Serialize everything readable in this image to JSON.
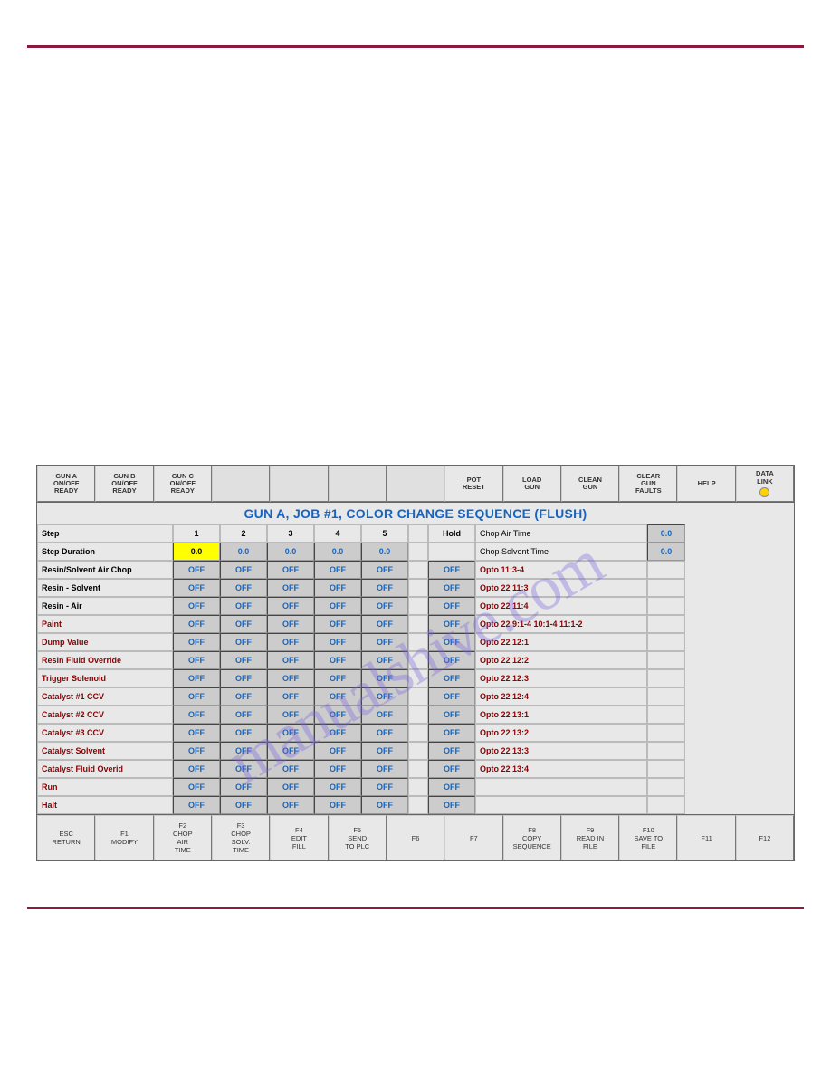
{
  "watermark": "manualshive.com",
  "title": "GUN A, JOB #1, COLOR CHANGE SEQUENCE (FLUSH)",
  "top": [
    {
      "t": "GUN A\nON/OFF\nREADY",
      "i": true
    },
    {
      "t": "GUN B\nON/OFF\nREADY",
      "i": true
    },
    {
      "t": "GUN C\nON/OFF\nREADY",
      "i": true
    },
    {
      "t": "",
      "i": false
    },
    {
      "t": "",
      "i": false
    },
    {
      "t": "",
      "i": false
    },
    {
      "t": "",
      "i": false
    },
    {
      "t": "POT\nRESET",
      "i": true
    },
    {
      "t": "LOAD\nGUN",
      "i": true
    },
    {
      "t": "CLEAN\nGUN",
      "i": true
    },
    {
      "t": "CLEAR\nGUN\nFAULTS",
      "i": true
    },
    {
      "t": "HELP",
      "i": true
    },
    {
      "t": "DATA\nLINK",
      "i": true,
      "led": true
    }
  ],
  "headerRow": {
    "label": "Step",
    "cols": [
      "1",
      "2",
      "3",
      "4",
      "5"
    ],
    "hold": "Hold",
    "rlabel": "Chop Air Time",
    "rval": "0.0"
  },
  "stepDur": {
    "label": "Step Duration",
    "vals": [
      "0.0",
      "0.0",
      "0.0",
      "0.0",
      "0.0"
    ],
    "hl": 0,
    "rlabel": "Chop Solvent Time",
    "rval": "0.0"
  },
  "rows": [
    {
      "label": "Resin/Solvent Air Chop",
      "red": false,
      "v": [
        "OFF",
        "OFF",
        "OFF",
        "OFF",
        "OFF"
      ],
      "h": "OFF",
      "o": "Opto 11:3-4"
    },
    {
      "label": "Resin - Solvent",
      "red": false,
      "v": [
        "OFF",
        "OFF",
        "OFF",
        "OFF",
        "OFF"
      ],
      "h": "OFF",
      "o": "Opto 22 11:3"
    },
    {
      "label": "Resin - Air",
      "red": false,
      "v": [
        "OFF",
        "OFF",
        "OFF",
        "OFF",
        "OFF"
      ],
      "h": "OFF",
      "o": "Opto 22 11:4"
    },
    {
      "label": "Paint",
      "red": true,
      "v": [
        "OFF",
        "OFF",
        "OFF",
        "OFF",
        "OFF"
      ],
      "h": "OFF",
      "o": "Opto  22 9:1-4  10:1-4  11:1-2"
    },
    {
      "label": "Dump Value",
      "red": true,
      "v": [
        "OFF",
        "OFF",
        "OFF",
        "OFF",
        "OFF"
      ],
      "h": "OFF",
      "o": "Opto  22 12:1"
    },
    {
      "label": "Resin Fluid Override",
      "red": true,
      "v": [
        "OFF",
        "OFF",
        "OFF",
        "OFF",
        "OFF"
      ],
      "h": "OFF",
      "o": "Opto  22 12:2"
    },
    {
      "label": "Trigger Solenoid",
      "red": true,
      "v": [
        "OFF",
        "OFF",
        "OFF",
        "OFF",
        "OFF"
      ],
      "h": "OFF",
      "o": "Opto  22 12:3"
    },
    {
      "label": "Catalyst #1 CCV",
      "red": true,
      "v": [
        "OFF",
        "OFF",
        "OFF",
        "OFF",
        "OFF"
      ],
      "h": "OFF",
      "o": "Opto  22 12:4"
    },
    {
      "label": "Catalyst #2 CCV",
      "red": true,
      "v": [
        "OFF",
        "OFF",
        "OFF",
        "OFF",
        "OFF"
      ],
      "h": "OFF",
      "o": "Opto  22 13:1"
    },
    {
      "label": "Catalyst #3 CCV",
      "red": true,
      "v": [
        "OFF",
        "OFF",
        "OFF",
        "OFF",
        "OFF"
      ],
      "h": "OFF",
      "o": "Opto  22 13:2"
    },
    {
      "label": "Catalyst Solvent",
      "red": true,
      "v": [
        "OFF",
        "OFF",
        "OFF",
        "OFF",
        "OFF"
      ],
      "h": "OFF",
      "o": "Opto  22 13:3"
    },
    {
      "label": "Catalyst Fluid Overid",
      "red": true,
      "v": [
        "OFF",
        "OFF",
        "OFF",
        "OFF",
        "OFF"
      ],
      "h": "OFF",
      "o": "Opto  22 13:4"
    },
    {
      "label": "Run",
      "red": true,
      "v": [
        "OFF",
        "OFF",
        "OFF",
        "OFF",
        "OFF"
      ],
      "h": "OFF",
      "o": ""
    },
    {
      "label": "Halt",
      "red": true,
      "v": [
        "OFF",
        "OFF",
        "OFF",
        "OFF",
        "OFF"
      ],
      "h": "OFF",
      "o": ""
    }
  ],
  "bottom": [
    {
      "t": "ESC\nRETURN",
      "i": true
    },
    {
      "t": "F1\nMODIFY",
      "i": true
    },
    {
      "t": "F2\nCHOP\nAIR\nTIME",
      "i": true
    },
    {
      "t": "F3\nCHOP\nSOLV.\nTIME",
      "i": true
    },
    {
      "t": "F4\nEDIT\nFILL",
      "i": true
    },
    {
      "t": "F5\nSEND\nTO PLC",
      "i": true
    },
    {
      "t": "F6",
      "i": true
    },
    {
      "t": "F7",
      "i": true
    },
    {
      "t": "F8\nCOPY\nSEQUENCE",
      "i": true
    },
    {
      "t": "F9\nREAD IN\nFILE",
      "i": true
    },
    {
      "t": "F10\nSAVE TO\nFILE",
      "i": true
    },
    {
      "t": "F11",
      "i": true
    },
    {
      "t": "F12",
      "i": true
    }
  ]
}
